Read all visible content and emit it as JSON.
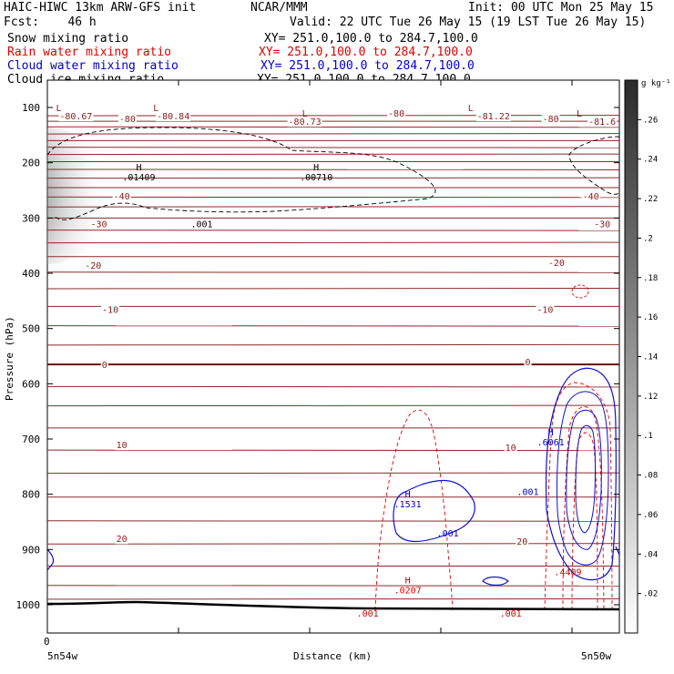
{
  "header": {
    "model": "HAIC-HIWC 13km ARW-GFS init",
    "org": "NCAR/MMM",
    "init": "Init: 00 UTC Mon 25 May 15",
    "fcst": "Fcst:    46 h",
    "valid": "Valid: 22 UTC Tue 26 May 15 (19 LST Tue 26 May 15)",
    "fields": [
      {
        "name": "Snow mixing ratio",
        "xy": "XY= 251.0,100.0 to 284.7,100.0",
        "color": "#000000"
      },
      {
        "name": "Rain water mixing ratio",
        "xy": "XY= 251.0,100.0 to 284.7,100.0",
        "color": "#e00000"
      },
      {
        "name": "Cloud water mixing ratio",
        "xy": "XY= 251.0,100.0 to 284.7,100.0",
        "color": "#0000d0"
      },
      {
        "name": "Cloud ice mixing ratio",
        "xy": "XY= 251.0,100.0 to 284.7,100.0",
        "color": "#000000"
      }
    ]
  },
  "colorbar": {
    "unit": "g kg⁻¹",
    "ticks": [
      ".26",
      ".24",
      ".22",
      ".2",
      ".18",
      ".16",
      ".14",
      ".12",
      ".1",
      ".08",
      ".06",
      ".04",
      ".02"
    ]
  },
  "chart_data": {
    "type": "contour",
    "ylabel": "Pressure (hPa)",
    "xlabel": "Distance (km)",
    "x_left_label": "5n54w",
    "x_right_label": "5n50w",
    "x_zero_label": "0",
    "yticks": [
      "100",
      "200",
      "300",
      "400",
      "500",
      "600",
      "700",
      "800",
      "900",
      "1000"
    ],
    "temperature_labels": [
      {
        "text": "-80.67",
        "p": 115,
        "x": 0.05
      },
      {
        "text": "-80",
        "p": 120,
        "x": 0.14
      },
      {
        "text": "-80.84",
        "p": 115,
        "x": 0.22
      },
      {
        "text": "-80.73",
        "p": 125,
        "x": 0.45
      },
      {
        "text": "-80",
        "p": 110,
        "x": 0.61
      },
      {
        "text": "-81.22",
        "p": 115,
        "x": 0.78
      },
      {
        "text": "-80",
        "p": 120,
        "x": 0.88
      },
      {
        "text": "-81.6",
        "p": 125,
        "x": 0.97
      },
      {
        "text": "-40",
        "p": 260,
        "x": 0.13
      },
      {
        "text": "-40",
        "p": 260,
        "x": 0.95
      },
      {
        "text": "-30",
        "p": 310,
        "x": 0.09
      },
      {
        "text": "-30",
        "p": 310,
        "x": 0.97
      },
      {
        "text": "-20",
        "p": 385,
        "x": 0.08
      },
      {
        "text": "-20",
        "p": 380,
        "x": 0.89
      },
      {
        "text": "-10",
        "p": 465,
        "x": 0.11
      },
      {
        "text": "-10",
        "p": 465,
        "x": 0.87
      },
      {
        "text": "0",
        "p": 565,
        "x": 0.1
      },
      {
        "text": "0",
        "p": 560,
        "x": 0.84
      },
      {
        "text": "10",
        "p": 710,
        "x": 0.13
      },
      {
        "text": "10",
        "p": 715,
        "x": 0.81
      },
      {
        "text": "20",
        "p": 880,
        "x": 0.13
      },
      {
        "text": "20",
        "p": 885,
        "x": 0.83
      }
    ],
    "highs_lows": [
      {
        "mark": "L",
        "p": 100,
        "x": 0.02,
        "color": "#8b1a1a"
      },
      {
        "mark": "L",
        "p": 100,
        "x": 0.19,
        "color": "#8b1a1a"
      },
      {
        "mark": "L",
        "p": 110,
        "x": 0.45,
        "color": "#8b1a1a"
      },
      {
        "mark": "L",
        "p": 100,
        "x": 0.74,
        "color": "#8b1a1a"
      },
      {
        "mark": "L",
        "p": 110,
        "x": 0.93,
        "color": "#8b1a1a"
      }
    ],
    "snow_labels": [
      {
        "mark": "H",
        "value": ".01409",
        "p": 220,
        "x": 0.16
      },
      {
        "mark": "H",
        "value": ".00710",
        "p": 220,
        "x": 0.47
      },
      {
        "mark": "",
        "value": ".001",
        "p": 305,
        "x": 0.27
      }
    ],
    "rain_labels": [
      {
        "mark": "H",
        "value": ".0207",
        "p": 968,
        "x": 0.63
      },
      {
        "mark": "",
        "value": ".001",
        "p": 1010,
        "x": 0.56
      },
      {
        "mark": "",
        "value": ".001",
        "p": 1010,
        "x": 0.81
      },
      {
        "mark": "",
        "value": ".4409",
        "p": 935,
        "x": 0.91
      }
    ],
    "cloud_water_labels": [
      {
        "mark": "H",
        "value": ".1531",
        "p": 812,
        "x": 0.63
      },
      {
        "mark": "",
        "value": ".001",
        "p": 865,
        "x": 0.7
      },
      {
        "mark": "H",
        "value": ".6061",
        "p": 700,
        "x": 0.88
      },
      {
        "mark": "",
        "value": ".001",
        "p": 790,
        "x": 0.84
      }
    ]
  }
}
